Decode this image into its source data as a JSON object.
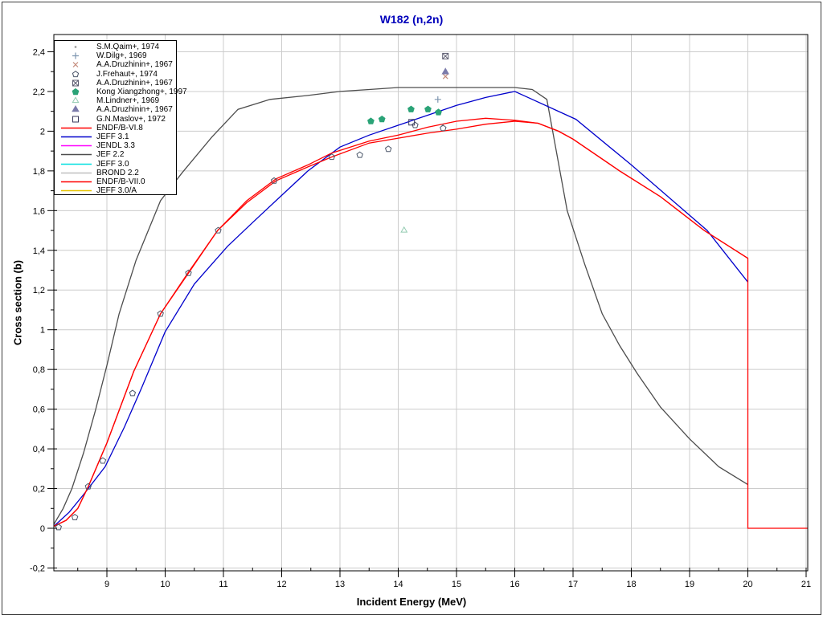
{
  "title": {
    "text": "W182 (n,2n)",
    "color": "#0000bb"
  },
  "axes": {
    "x": {
      "label": "Incident Energy (MeV)",
      "min": 8.09,
      "max": 21.03,
      "major_ticks": [
        9,
        10,
        11,
        12,
        13,
        14,
        15,
        16,
        17,
        18,
        19,
        20,
        21
      ],
      "tick_labels": [
        "9",
        "10",
        "11",
        "12",
        "13",
        "14",
        "15",
        "16",
        "17",
        "18",
        "19",
        "20",
        "21"
      ],
      "minor_tick_step": 0.5
    },
    "y": {
      "label": "Cross section (b)",
      "min": -0.214,
      "max": 2.487,
      "major_ticks": [
        -0.2,
        0,
        0.2,
        0.4,
        0.6,
        0.8,
        1.0,
        1.2,
        1.4,
        1.6,
        1.8,
        2.0,
        2.2,
        2.4
      ],
      "tick_labels": [
        "-0,2",
        "0",
        "0,2",
        "0,4",
        "0,6",
        "0,8",
        "1",
        "1,2",
        "1,4",
        "1,6",
        "1,8",
        "2",
        "2,2",
        "2,4"
      ],
      "minor_tick_step": 0.1
    }
  },
  "legend": {
    "entries": [
      {
        "label": "S.M.Qaim+, 1974",
        "kind": "marker",
        "marker": "dot",
        "color": "#999999"
      },
      {
        "label": "W.Dilg+, 1969",
        "kind": "marker",
        "marker": "plus",
        "color": "#7e96b0"
      },
      {
        "label": "A.A.Druzhinin+, 1967",
        "kind": "marker",
        "marker": "x",
        "color": "#c38a7a"
      },
      {
        "label": "J.Frehaut+, 1974",
        "kind": "marker",
        "marker": "pentagon-open",
        "color": "#4a5568"
      },
      {
        "label": "A.A.Druzhinin+, 1967",
        "kind": "marker",
        "marker": "square-crossed",
        "color": "#5c5c70"
      },
      {
        "label": "Kong Xiangzhong+, 1997",
        "kind": "marker",
        "marker": "pentagon-filled",
        "color": "#2aa377"
      },
      {
        "label": "M.Lindner+, 1969",
        "kind": "marker",
        "marker": "triangle-open",
        "color": "#93cbb1"
      },
      {
        "label": "A.A.Druzhinin+, 1967",
        "kind": "marker",
        "marker": "triangle-filled",
        "color": "#7b7bab"
      },
      {
        "label": "G.N.Maslov+, 1972",
        "kind": "marker",
        "marker": "square-open",
        "color": "#38385c"
      },
      {
        "label": "ENDF/B-VI.8",
        "kind": "line",
        "color": "#ff0000"
      },
      {
        "label": "JEFF 3.1",
        "kind": "line",
        "color": "#0000cc"
      },
      {
        "label": "JENDL 3.3",
        "kind": "line",
        "color": "#ff00ff"
      },
      {
        "label": "JEF 2.2",
        "kind": "line",
        "color": "#4d4d4d"
      },
      {
        "label": "JEFF 3.0",
        "kind": "line",
        "color": "#00e0e0"
      },
      {
        "label": "BROND 2.2",
        "kind": "line",
        "color": "#bfbfbf"
      },
      {
        "label": "ENDF/B-VII.0",
        "kind": "line",
        "color": "#ff0000"
      },
      {
        "label": "JEFF 3.0/A",
        "kind": "line",
        "color": "#e6c300"
      }
    ]
  },
  "chart_data": {
    "type": "line",
    "title": "W182 (n,2n)",
    "xlabel": "Incident Energy (MeV)",
    "ylabel": "Cross section (b)",
    "xlim": [
      8.09,
      21.03
    ],
    "ylim": [
      -0.214,
      2.487
    ],
    "grid": true,
    "legend_position": "top-left",
    "grid_color": "#cccccc",
    "curves": [
      {
        "id": "jef22",
        "name": "JEF 2.2",
        "color": "#4d4d4d",
        "points": [
          [
            8.09,
            0.02
          ],
          [
            8.25,
            0.1
          ],
          [
            8.4,
            0.2
          ],
          [
            8.6,
            0.38
          ],
          [
            8.8,
            0.59
          ],
          [
            9.0,
            0.82
          ],
          [
            9.21,
            1.08
          ],
          [
            9.5,
            1.35
          ],
          [
            9.92,
            1.65
          ],
          [
            10.29,
            1.79
          ],
          [
            10.8,
            1.97
          ],
          [
            11.25,
            2.11
          ],
          [
            11.8,
            2.16
          ],
          [
            12.45,
            2.18
          ],
          [
            13.0,
            2.2
          ],
          [
            13.5,
            2.21
          ],
          [
            14.0,
            2.22
          ],
          [
            15.0,
            2.22
          ],
          [
            16.0,
            2.22
          ],
          [
            16.3,
            2.21
          ],
          [
            16.55,
            2.16
          ],
          [
            16.9,
            1.6
          ],
          [
            17.2,
            1.33
          ],
          [
            17.5,
            1.08
          ],
          [
            17.8,
            0.92
          ],
          [
            18.1,
            0.78
          ],
          [
            18.5,
            0.61
          ],
          [
            19.0,
            0.45
          ],
          [
            19.5,
            0.31
          ],
          [
            20.0,
            0.22
          ]
        ]
      },
      {
        "id": "jeff31",
        "name": "JEFF 3.1",
        "color": "#0000cc",
        "points": [
          [
            8.09,
            0.01
          ],
          [
            8.35,
            0.08
          ],
          [
            8.6,
            0.17
          ],
          [
            8.97,
            0.31
          ],
          [
            9.3,
            0.51
          ],
          [
            9.6,
            0.71
          ],
          [
            10.0,
            0.99
          ],
          [
            10.5,
            1.23
          ],
          [
            11.07,
            1.42
          ],
          [
            11.5,
            1.54
          ],
          [
            11.9,
            1.65
          ],
          [
            12.45,
            1.8
          ],
          [
            13.0,
            1.92
          ],
          [
            13.5,
            1.98
          ],
          [
            14.0,
            2.03
          ],
          [
            14.5,
            2.08
          ],
          [
            15.0,
            2.13
          ],
          [
            15.5,
            2.17
          ],
          [
            16.0,
            2.2
          ],
          [
            16.3,
            2.16
          ],
          [
            17.05,
            2.06
          ],
          [
            18.0,
            1.83
          ],
          [
            19.3,
            1.5
          ],
          [
            20.0,
            1.24
          ]
        ]
      },
      {
        "id": "endfb70",
        "name": "ENDF/B-VII.0",
        "color": "#ff0000",
        "points": [
          [
            8.09,
            0.01
          ],
          [
            8.3,
            0.04
          ],
          [
            8.5,
            0.1
          ],
          [
            8.68,
            0.21
          ],
          [
            9.0,
            0.43
          ],
          [
            9.46,
            0.79
          ],
          [
            9.92,
            1.08
          ],
          [
            10.4,
            1.29
          ],
          [
            10.9,
            1.5
          ],
          [
            11.4,
            1.65
          ],
          [
            11.9,
            1.76
          ],
          [
            12.45,
            1.83
          ],
          [
            12.86,
            1.89
          ],
          [
            13.5,
            1.95
          ],
          [
            14.0,
            1.98
          ],
          [
            14.5,
            2.02
          ],
          [
            15.0,
            2.05
          ],
          [
            15.5,
            2.065
          ],
          [
            16.0,
            2.055
          ],
          [
            16.4,
            2.04
          ],
          [
            16.75,
            2.0
          ],
          [
            17.0,
            1.96
          ],
          [
            17.8,
            1.8
          ],
          [
            18.5,
            1.67
          ],
          [
            19.25,
            1.5
          ],
          [
            20.0,
            1.36
          ]
        ]
      },
      {
        "id": "endfb68",
        "name": "ENDF/B-VI.8",
        "color": "#ff0000",
        "points": [
          [
            8.09,
            0.01
          ],
          [
            8.3,
            0.04
          ],
          [
            8.5,
            0.1
          ],
          [
            8.68,
            0.21
          ],
          [
            9.0,
            0.43
          ],
          [
            9.46,
            0.79
          ],
          [
            9.92,
            1.08
          ],
          [
            10.4,
            1.285
          ],
          [
            10.9,
            1.5
          ],
          [
            11.4,
            1.64
          ],
          [
            11.9,
            1.75
          ],
          [
            12.45,
            1.82
          ],
          [
            12.86,
            1.87
          ],
          [
            13.5,
            1.94
          ],
          [
            14.0,
            1.965
          ],
          [
            14.5,
            1.99
          ],
          [
            15.0,
            2.01
          ],
          [
            15.5,
            2.035
          ],
          [
            16.0,
            2.05
          ],
          [
            16.4,
            2.04
          ],
          [
            16.75,
            2.0
          ],
          [
            17.0,
            1.96
          ],
          [
            17.8,
            1.8
          ],
          [
            18.5,
            1.67
          ],
          [
            19.25,
            1.5
          ],
          [
            20.0,
            1.36
          ],
          [
            20.0,
            0.0
          ],
          [
            21.03,
            0.0
          ]
        ]
      }
    ],
    "datasets": [
      {
        "id": "qaim",
        "name": "S.M.Qaim+, 1974",
        "marker": "dot",
        "color": "#999999",
        "points": [
          [
            14.76,
            2.03
          ]
        ]
      },
      {
        "id": "dilg",
        "name": "W.Dilg+, 1969",
        "marker": "plus",
        "color": "#7e96b0",
        "points": [
          [
            14.68,
            2.16
          ]
        ]
      },
      {
        "id": "druzhinin-x",
        "name": "A.A.Druzhinin+, 1967",
        "marker": "x",
        "color": "#c38a7a",
        "points": [
          [
            14.81,
            2.276
          ]
        ]
      },
      {
        "id": "frehaut",
        "name": "J.Frehaut+, 1974",
        "marker": "pentagon-open",
        "color": "#4a5568",
        "points": [
          [
            8.17,
            0.005
          ],
          [
            8.45,
            0.055
          ],
          [
            8.68,
            0.21
          ],
          [
            8.93,
            0.34
          ],
          [
            9.44,
            0.68
          ],
          [
            9.92,
            1.08
          ],
          [
            10.4,
            1.285
          ],
          [
            10.91,
            1.5
          ],
          [
            11.87,
            1.75
          ],
          [
            12.86,
            1.87
          ],
          [
            13.34,
            1.88
          ],
          [
            13.83,
            1.91
          ],
          [
            14.29,
            2.03
          ],
          [
            14.77,
            2.015
          ]
        ]
      },
      {
        "id": "druzhinin-box",
        "name": "A.A.Druzhinin+, 1967",
        "marker": "square-crossed",
        "color": "#5c5c70",
        "points": [
          [
            14.81,
            2.378
          ]
        ]
      },
      {
        "id": "kong",
        "name": "Kong Xiangzhong+, 1997",
        "marker": "pentagon-filled",
        "color": "#2aa377",
        "points": [
          [
            13.53,
            2.05
          ],
          [
            13.72,
            2.06
          ],
          [
            14.22,
            2.11
          ],
          [
            14.51,
            2.11
          ],
          [
            14.69,
            2.095
          ]
        ]
      },
      {
        "id": "lindner",
        "name": "M.Lindner+, 1969",
        "marker": "triangle-open",
        "color": "#93cbb1",
        "points": [
          [
            14.1,
            1.5
          ]
        ]
      },
      {
        "id": "druzhinin-tri",
        "name": "A.A.Druzhinin+, 1967",
        "marker": "triangle-filled",
        "color": "#7b7bab",
        "points": [
          [
            14.81,
            2.298
          ]
        ]
      },
      {
        "id": "maslov",
        "name": "G.N.Maslov+, 1972",
        "marker": "square-open",
        "color": "#38385c",
        "points": [
          [
            14.23,
            2.045
          ]
        ]
      }
    ]
  }
}
